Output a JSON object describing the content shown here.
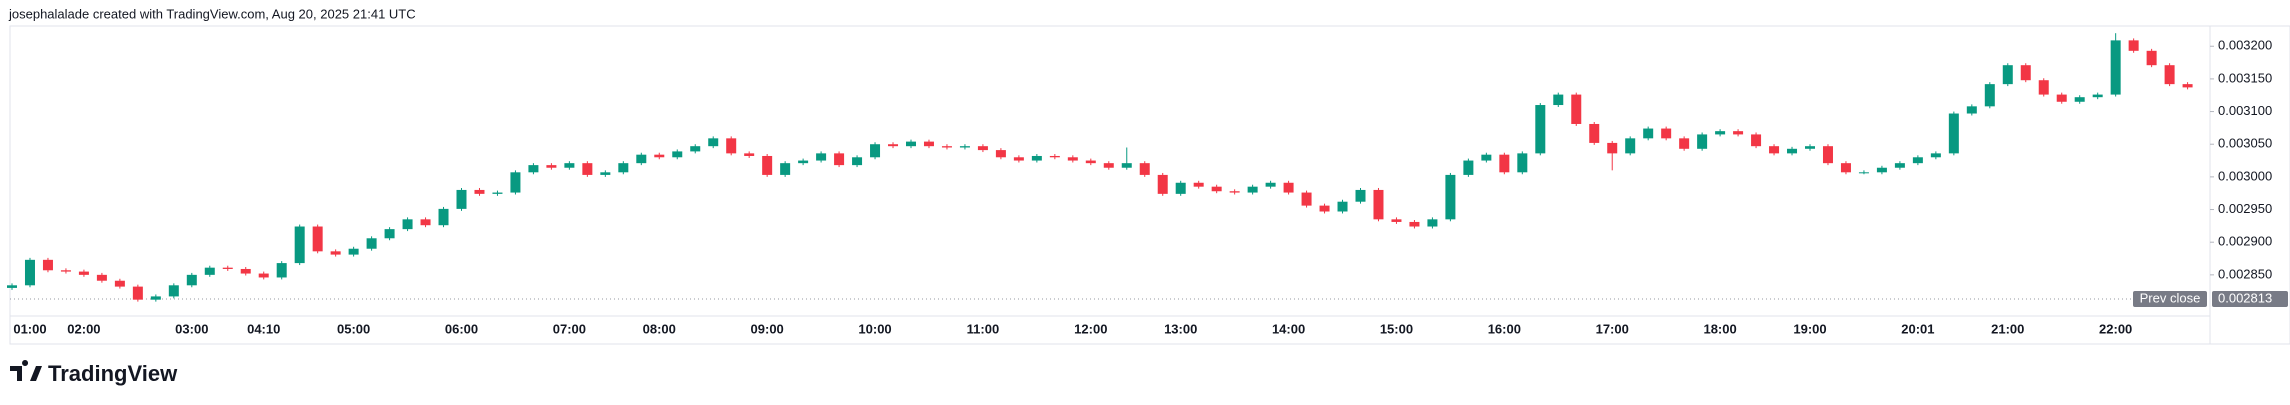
{
  "chart_data": {
    "type": "candlestick",
    "title": "josephalalade created with TradingView.com, Aug 20, 2025 21:41 UTC",
    "up_color": "#089981",
    "down_color": "#f23645",
    "categories": [
      null,
      "01:00",
      null,
      null,
      "02:00",
      null,
      null,
      null,
      null,
      null,
      "03:00",
      null,
      null,
      null,
      "04:10",
      null,
      null,
      null,
      null,
      "05:00",
      null,
      null,
      null,
      null,
      null,
      "06:00",
      null,
      null,
      null,
      null,
      null,
      "07:00",
      null,
      null,
      null,
      null,
      "08:00",
      null,
      null,
      null,
      null,
      null,
      "09:00",
      null,
      null,
      null,
      null,
      null,
      "10:00",
      null,
      null,
      null,
      null,
      null,
      "11:00",
      null,
      null,
      null,
      null,
      null,
      "12:00",
      null,
      null,
      null,
      null,
      "13:00",
      null,
      null,
      null,
      null,
      null,
      "14:00",
      null,
      null,
      null,
      null,
      null,
      "15:00",
      null,
      null,
      null,
      null,
      null,
      "16:00",
      null,
      null,
      null,
      null,
      null,
      "17:00",
      null,
      null,
      null,
      null,
      null,
      "18:00",
      null,
      null,
      null,
      null,
      "19:00",
      null,
      null,
      null,
      null,
      null,
      "20:01",
      null,
      null,
      null,
      null,
      "21:00",
      null,
      null,
      null,
      null,
      null,
      "22:00",
      null,
      null,
      null,
      null
    ],
    "open": [
      0.00283,
      0.002834,
      0.002873,
      0.002857,
      0.002855,
      0.00285,
      0.002841,
      0.002832,
      0.002812,
      0.002817,
      0.002834,
      0.00285,
      0.002861,
      0.002859,
      0.002852,
      0.002846,
      0.002868,
      0.002924,
      0.002886,
      0.002881,
      0.00289,
      0.002906,
      0.00292,
      0.002935,
      0.002926,
      0.002951,
      0.00298,
      0.002974,
      0.002976,
      0.003007,
      0.003018,
      0.003014,
      0.003021,
      0.003003,
      0.003007,
      0.003021,
      0.003034,
      0.00303,
      0.003039,
      0.003047,
      0.003059,
      0.003036,
      0.003032,
      0.003003,
      0.003021,
      0.003025,
      0.003036,
      0.003018,
      0.00303,
      0.00305,
      0.003047,
      0.003054,
      0.003047,
      0.003045,
      0.003047,
      0.003041,
      0.00303,
      0.003025,
      0.003032,
      0.00303,
      0.003025,
      0.003021,
      0.003014,
      0.003021,
      0.003003,
      0.002974,
      0.002991,
      0.002985,
      0.002978,
      0.002976,
      0.002985,
      0.002991,
      0.002976,
      0.002956,
      0.002947,
      0.002962,
      0.00298,
      0.002935,
      0.002931,
      0.002924,
      0.002935,
      0.003003,
      0.003025,
      0.003034,
      0.003007,
      0.003036,
      0.00311,
      0.003126,
      0.003081,
      0.003052,
      0.003036,
      0.003059,
      0.003074,
      0.003059,
      0.003043,
      0.003065,
      0.00307,
      0.003065,
      0.003047,
      0.003036,
      0.003043,
      0.003047,
      0.003021,
      0.003007,
      0.003007,
      0.003014,
      0.003021,
      0.00303,
      0.003036,
      0.003097,
      0.003108,
      0.003142,
      0.003171,
      0.003148,
      0.003126,
      0.003115,
      0.003122,
      0.003126,
      0.003209,
      0.003193,
      0.003171,
      0.003142
    ],
    "high": [
      0.002837,
      0.002876,
      0.002876,
      0.00286,
      0.002858,
      0.002853,
      0.002844,
      0.002835,
      0.00282,
      0.002837,
      0.002853,
      0.002864,
      0.002864,
      0.002862,
      0.002855,
      0.002871,
      0.002927,
      0.002927,
      0.002889,
      0.002893,
      0.002909,
      0.002923,
      0.002938,
      0.002938,
      0.002954,
      0.002983,
      0.002983,
      0.002979,
      0.00301,
      0.003021,
      0.003021,
      0.003024,
      0.003024,
      0.00301,
      0.003024,
      0.003037,
      0.003037,
      0.003042,
      0.00305,
      0.003062,
      0.003062,
      0.003039,
      0.003035,
      0.003024,
      0.003028,
      0.003039,
      0.003039,
      0.003033,
      0.003053,
      0.003053,
      0.003057,
      0.003057,
      0.00305,
      0.00305,
      0.00305,
      0.003044,
      0.003033,
      0.003035,
      0.003035,
      0.003033,
      0.003028,
      0.003024,
      0.003045,
      0.003024,
      0.003006,
      0.002994,
      0.002994,
      0.002988,
      0.002981,
      0.002988,
      0.002994,
      0.002994,
      0.002979,
      0.002959,
      0.002965,
      0.002983,
      0.002983,
      0.002938,
      0.002934,
      0.002938,
      0.003006,
      0.003028,
      0.003037,
      0.003037,
      0.003039,
      0.003113,
      0.003129,
      0.003129,
      0.003084,
      0.003055,
      0.003062,
      0.003077,
      0.003077,
      0.003062,
      0.003068,
      0.003073,
      0.003073,
      0.003068,
      0.00305,
      0.003046,
      0.00305,
      0.00305,
      0.003024,
      0.00301,
      0.003017,
      0.003024,
      0.003033,
      0.003039,
      0.0031,
      0.003111,
      0.003145,
      0.003174,
      0.003174,
      0.003151,
      0.003129,
      0.003125,
      0.003129,
      0.00322,
      0.003212,
      0.003196,
      0.003174,
      0.003145
    ],
    "low": [
      0.002827,
      0.002831,
      0.002854,
      0.002852,
      0.002847,
      0.002838,
      0.002829,
      0.002809,
      0.002809,
      0.002814,
      0.002831,
      0.002847,
      0.002856,
      0.002849,
      0.002843,
      0.002843,
      0.002865,
      0.002883,
      0.002878,
      0.002878,
      0.002887,
      0.002903,
      0.002917,
      0.002923,
      0.002923,
      0.002948,
      0.002971,
      0.002971,
      0.002973,
      0.003004,
      0.003011,
      0.003011,
      0.003,
      0.003,
      0.003004,
      0.003018,
      0.003027,
      0.003027,
      0.003036,
      0.003044,
      0.003033,
      0.003029,
      0.003,
      0.003,
      0.003018,
      0.003022,
      0.003015,
      0.003015,
      0.003027,
      0.003044,
      0.003044,
      0.003044,
      0.003042,
      0.003042,
      0.003038,
      0.003027,
      0.003022,
      0.003022,
      0.003027,
      0.003022,
      0.003018,
      0.003011,
      0.003011,
      0.003,
      0.002971,
      0.002971,
      0.002982,
      0.002975,
      0.002973,
      0.002973,
      0.002982,
      0.002973,
      0.002953,
      0.002944,
      0.002944,
      0.002959,
      0.002932,
      0.002928,
      0.002921,
      0.002921,
      0.002932,
      0.003,
      0.003022,
      0.003004,
      0.003004,
      0.003033,
      0.003107,
      0.003078,
      0.003049,
      0.00301,
      0.003033,
      0.003056,
      0.003056,
      0.00304,
      0.00304,
      0.003062,
      0.003062,
      0.003044,
      0.003033,
      0.003033,
      0.00304,
      0.003018,
      0.003004,
      0.003004,
      0.003004,
      0.003011,
      0.003018,
      0.003027,
      0.003033,
      0.003094,
      0.003105,
      0.003139,
      0.003145,
      0.003123,
      0.003112,
      0.003112,
      0.003119,
      0.003123,
      0.00319,
      0.003168,
      0.003139,
      0.003134
    ],
    "close": [
      0.002834,
      0.002873,
      0.002857,
      0.002855,
      0.00285,
      0.002841,
      0.002832,
      0.002812,
      0.002817,
      0.002834,
      0.00285,
      0.002861,
      0.002859,
      0.002852,
      0.002846,
      0.002868,
      0.002924,
      0.002886,
      0.002881,
      0.00289,
      0.002906,
      0.00292,
      0.002935,
      0.002926,
      0.002951,
      0.00298,
      0.002974,
      0.002976,
      0.003007,
      0.003018,
      0.003014,
      0.003021,
      0.003003,
      0.003007,
      0.003021,
      0.003034,
      0.00303,
      0.003039,
      0.003047,
      0.003059,
      0.003036,
      0.003032,
      0.003003,
      0.003021,
      0.003025,
      0.003036,
      0.003018,
      0.00303,
      0.00305,
      0.003047,
      0.003054,
      0.003047,
      0.003045,
      0.003047,
      0.003041,
      0.00303,
      0.003025,
      0.003032,
      0.00303,
      0.003025,
      0.003021,
      0.003014,
      0.003021,
      0.003003,
      0.002974,
      0.002991,
      0.002985,
      0.002978,
      0.002976,
      0.002985,
      0.002991,
      0.002976,
      0.002956,
      0.002947,
      0.002962,
      0.00298,
      0.002935,
      0.002931,
      0.002924,
      0.002935,
      0.003003,
      0.003025,
      0.003034,
      0.003007,
      0.003036,
      0.00311,
      0.003126,
      0.003081,
      0.003052,
      0.003036,
      0.003059,
      0.003074,
      0.003059,
      0.003043,
      0.003065,
      0.00307,
      0.003065,
      0.003047,
      0.003036,
      0.003043,
      0.003047,
      0.003021,
      0.003007,
      0.003007,
      0.003014,
      0.003021,
      0.00303,
      0.003036,
      0.003097,
      0.003108,
      0.003142,
      0.003171,
      0.003148,
      0.003126,
      0.003115,
      0.003122,
      0.003126,
      0.003209,
      0.003193,
      0.003171,
      0.003142,
      0.003137
    ],
    "ylim": [
      0.002787,
      0.003231
    ],
    "yticks": [
      {
        "value": 0.00285,
        "label": "0.002850"
      },
      {
        "value": 0.0029,
        "label": "0.002900"
      },
      {
        "value": 0.00295,
        "label": "0.002950"
      },
      {
        "value": 0.003,
        "label": "0.003000"
      },
      {
        "value": 0.00305,
        "label": "0.003050"
      },
      {
        "value": 0.0031,
        "label": "0.003100"
      },
      {
        "value": 0.00315,
        "label": "0.003150"
      },
      {
        "value": 0.0032,
        "label": "0.003200"
      }
    ],
    "grid": false,
    "prev_close": {
      "label": "Prev close",
      "value": 0.002813
    }
  },
  "brand": "TradingView"
}
